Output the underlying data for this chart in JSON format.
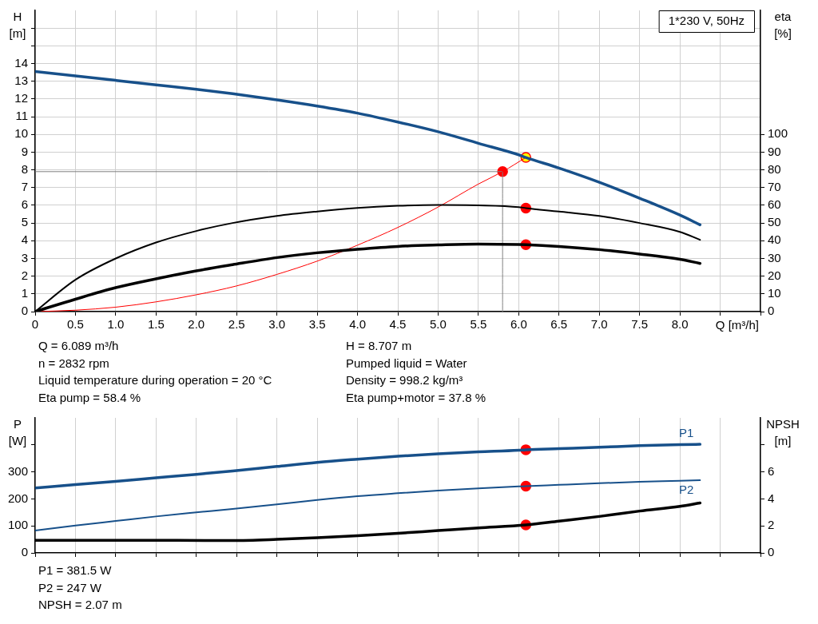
{
  "chart_data": [
    {
      "type": "line",
      "title": "1*230 V, 50Hz",
      "xlabel": "Q [m³/h]",
      "ylabel": "H [m]",
      "y2label": "eta [%]",
      "xlim": [
        0,
        9
      ],
      "xticks": [
        0,
        0.5,
        {
          "value": 1,
          "label": "1.0"
        },
        1.5,
        {
          "value": 2,
          "label": "2.0"
        },
        2.5,
        {
          "value": 3,
          "label": "3.0"
        },
        3.5,
        {
          "value": 4,
          "label": "4.0"
        },
        4.5,
        {
          "value": 5,
          "label": "5.0"
        },
        5.5,
        {
          "value": 6,
          "label": "6.0"
        },
        6.5,
        {
          "value": 7,
          "label": "7.0"
        },
        7.5,
        {
          "value": 8,
          "label": "8.0"
        },
        {
          "value": 8.5,
          "label": null
        },
        {
          "value": 9,
          "label": null
        }
      ],
      "ylim": [
        0,
        17
      ],
      "yticks": [
        0,
        1,
        2,
        3,
        4,
        5,
        6,
        7,
        8,
        9,
        10,
        11,
        12,
        13,
        14,
        {
          "value": 15,
          "label": null
        },
        {
          "value": 16,
          "label": null
        }
      ],
      "y2lim": [
        0,
        170
      ],
      "y2ticks": [
        0,
        10,
        20,
        30,
        40,
        50,
        60,
        70,
        80,
        90,
        100
      ],
      "grid": true,
      "marker": "none",
      "series": [
        {
          "color": "#17508a",
          "x": [
            0,
            0.5,
            1,
            1.5,
            2,
            2.45,
            3,
            3.5,
            4,
            4.5,
            5,
            5.5,
            6,
            6.089,
            6.5,
            7,
            7.5,
            8,
            8.25
          ],
          "values": [
            13.55,
            13.3,
            13.05,
            12.8,
            12.55,
            12.3,
            11.95,
            11.6,
            11.2,
            10.7,
            10.15,
            9.5,
            8.85,
            8.7,
            8.1,
            7.3,
            6.4,
            5.45,
            4.9
          ]
        },
        {
          "color": "#000000",
          "axis": "y2",
          "x": [
            0,
            0.5,
            1,
            1.5,
            2,
            2.45,
            3,
            3.5,
            4,
            4.5,
            5,
            5.5,
            6,
            6.089,
            6.5,
            7,
            7.5,
            8,
            8.25
          ],
          "values": [
            0,
            18,
            30,
            39,
            45.5,
            50,
            54,
            56.5,
            58.5,
            59.7,
            60.2,
            60,
            59,
            58.4,
            56.5,
            54,
            50,
            45,
            40.5
          ]
        },
        {
          "color": "#000000",
          "axis": "y2",
          "x": [
            0,
            0.5,
            1,
            1.5,
            2,
            2.45,
            3,
            3.5,
            4,
            4.5,
            5,
            5.5,
            6,
            6.089,
            6.5,
            7,
            7.5,
            8,
            8.25
          ],
          "values": [
            0,
            7,
            13.5,
            18.5,
            23,
            26.5,
            30.5,
            33.2,
            35.2,
            36.8,
            37.6,
            38.1,
            37.9,
            37.8,
            36.8,
            35,
            32.5,
            29.5,
            27.2
          ]
        },
        {
          "color": "#ff0000",
          "x": [
            0,
            0.5,
            1,
            1.5,
            2,
            2.5,
            3,
            3.5,
            4,
            4.5,
            5,
            5.5,
            5.8,
            6.089
          ],
          "values": [
            0,
            0.08,
            0.25,
            0.55,
            0.95,
            1.45,
            2.1,
            2.85,
            3.75,
            4.75,
            5.9,
            7.2,
            7.9,
            8.7
          ]
        },
        {
          "color": "#808080",
          "x": [
            0,
            5.8,
            5.8
          ],
          "values": [
            7.9,
            7.9,
            0
          ]
        },
        {
          "type": "scatter",
          "marker": "circle",
          "color": "#ff0000",
          "x": [
            5.8
          ],
          "values": [
            7.9
          ]
        },
        {
          "type": "scatter",
          "marker": "circle",
          "color": "#ffff00",
          "x": [
            6.089
          ],
          "values": [
            8.7
          ]
        },
        {
          "type": "scatter",
          "marker": "circle",
          "color": "#ff0000",
          "axis": "y2",
          "x": [
            6.089,
            6.089
          ],
          "values": [
            58.4,
            37.8
          ]
        }
      ],
      "annotations": [
        "Q = 6.089 m³/h",
        "n = 2832 rpm",
        "Liquid temperature during operation = 20 °C",
        "Eta pump = 58.4 %",
        "H = 8.707 m",
        "Pumped liquid = Water",
        "Density = 998.2 kg/m³",
        "Eta pump+motor = 37.8 %"
      ]
    },
    {
      "type": "line",
      "ylabel": "P [W]",
      "y2label": "NPSH [m]",
      "tick_labels": "y",
      "xlim": [
        0,
        9
      ],
      "xticks": [
        0,
        0.5,
        1,
        1.5,
        2,
        2.5,
        3,
        3.5,
        4,
        4.5,
        5,
        5.5,
        6,
        6.5,
        7,
        7.5,
        8,
        8.5,
        9
      ],
      "ylim": [
        0,
        500
      ],
      "yticks": [
        0,
        100,
        200,
        300,
        {
          "value": 400,
          "label": null
        }
      ],
      "y2lim": [
        0,
        10
      ],
      "y2ticks": [
        0,
        2,
        4,
        6,
        {
          "value": 8,
          "label": null
        }
      ],
      "grid": "x",
      "marker": "none",
      "series": [
        {
          "name": "P1",
          "color": "#17508a",
          "x": [
            0,
            0.5,
            1,
            1.5,
            2,
            2.45,
            3,
            3.5,
            4,
            4.5,
            5,
            5.5,
            6,
            6.089,
            6.5,
            7,
            7.5,
            8,
            8.25
          ],
          "values": [
            240,
            253,
            265,
            278,
            291,
            303,
            320,
            335,
            347,
            358,
            367,
            374,
            380,
            382,
            386,
            391,
            397,
            401,
            402
          ]
        },
        {
          "name": "P2",
          "color": "#17508a",
          "x": [
            0,
            0.5,
            1,
            1.5,
            2,
            2.45,
            3,
            3.5,
            4,
            4.5,
            5,
            5.5,
            6,
            6.089,
            6.5,
            7,
            7.5,
            8,
            8.25
          ],
          "values": [
            83,
            101,
            118,
            135,
            150,
            163,
            180,
            196,
            210,
            221,
            231,
            239,
            246,
            247,
            252,
            258,
            263,
            267,
            269
          ]
        },
        {
          "color": "#000000",
          "axis": "y2",
          "x": [
            0,
            1,
            2.45,
            3,
            3.5,
            4,
            4.5,
            5,
            5.5,
            6.089,
            6.5,
            7,
            7.5,
            8,
            8.25
          ],
          "values": [
            0.93,
            0.93,
            0.92,
            1,
            1.12,
            1.27,
            1.45,
            1.65,
            1.85,
            2.07,
            2.35,
            2.7,
            3.1,
            3.45,
            3.7
          ]
        },
        {
          "type": "scatter",
          "marker": "circle",
          "color": "#ff0000",
          "x": [
            6.089,
            6.089
          ],
          "values": [
            382,
            247
          ]
        },
        {
          "type": "scatter",
          "marker": "circle",
          "color": "#ff0000",
          "axis": "y2",
          "x": [
            6.089
          ],
          "values": [
            2.07
          ]
        }
      ],
      "annotations": [
        "P1 = 381.5 W",
        "P2 = 247 W",
        "NPSH = 2.07 m"
      ]
    }
  ]
}
